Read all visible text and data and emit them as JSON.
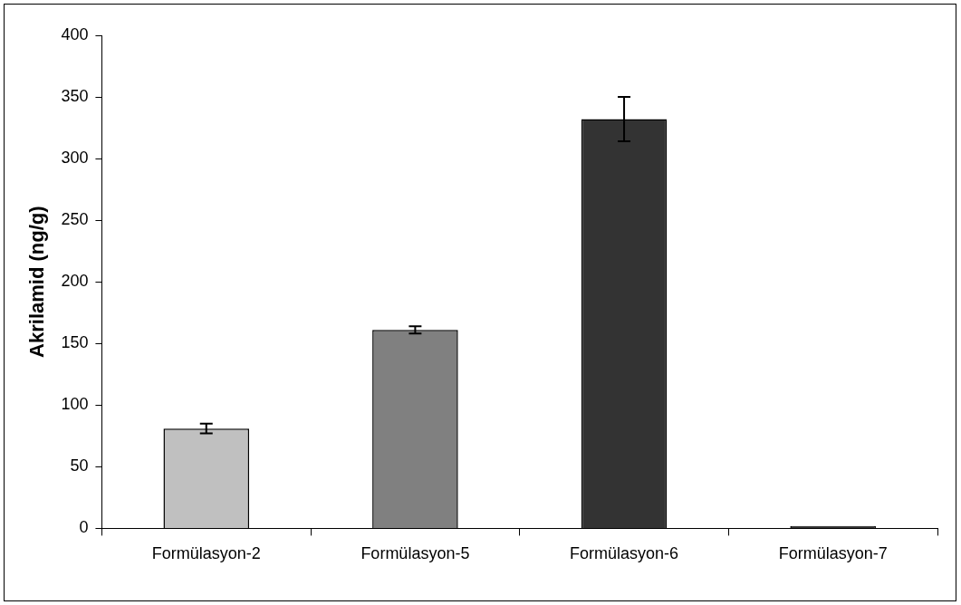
{
  "chart_data": {
    "type": "bar",
    "ylabel": "Akrilamid (ng/g)",
    "categories": [
      "Formülasyon-2",
      "Formülasyon-5",
      "Formülasyon-6",
      "Formülasyon-7"
    ],
    "values": [
      81,
      161,
      332,
      2
    ],
    "colors": [
      "#c0c0c0",
      "#808080",
      "#333333",
      "#333333"
    ],
    "errors": [
      4,
      3,
      18,
      null
    ],
    "ylim": [
      0,
      400
    ],
    "yticks": [
      0,
      50,
      100,
      150,
      200,
      250,
      300,
      350,
      400
    ],
    "grid": false,
    "legend": false
  }
}
